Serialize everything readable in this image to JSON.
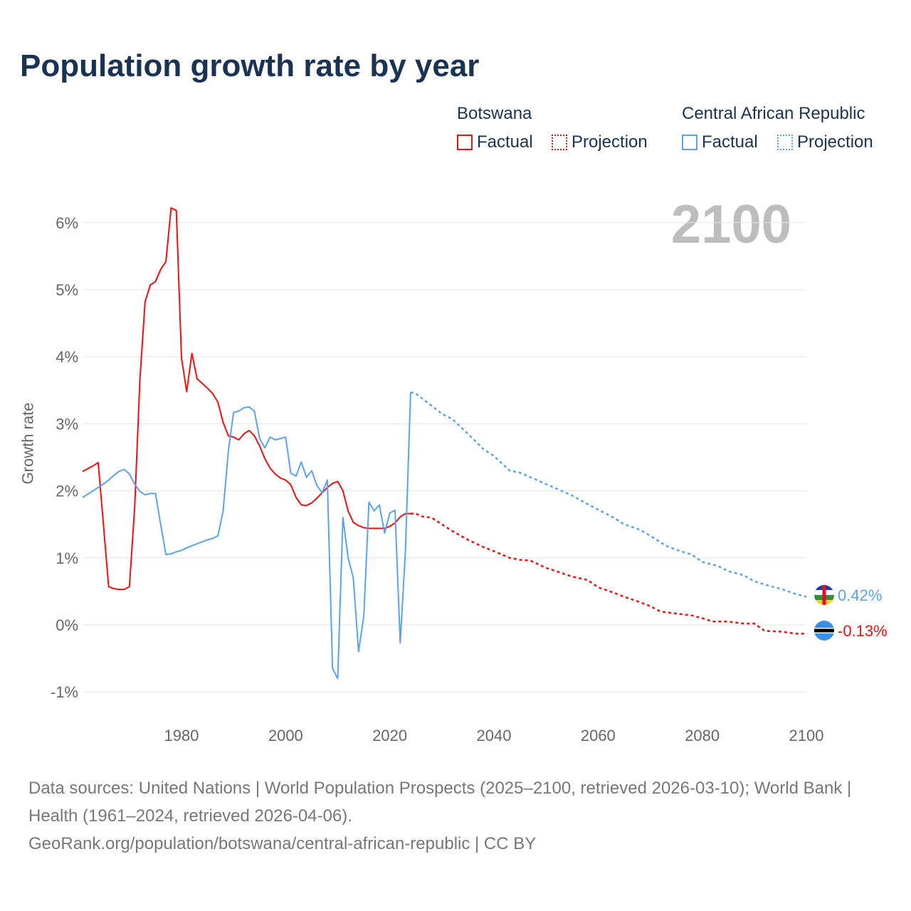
{
  "chart_data": {
    "type": "line",
    "title": "Population growth rate by year",
    "ylabel": "Growth rate",
    "xlabel": "",
    "xlim": [
      1961,
      2100
    ],
    "ylim": [
      -1.1,
      6.6
    ],
    "x_ticks": [
      1980,
      2000,
      2020,
      2040,
      2060,
      2080,
      2100
    ],
    "y_ticks": [
      -1,
      0,
      1,
      2,
      3,
      4,
      5,
      6
    ],
    "y_tick_labels": [
      "-1%",
      "0%",
      "1%",
      "2%",
      "3%",
      "4%",
      "5%",
      "6%"
    ],
    "x_tick_labels": [
      "1980",
      "2000",
      "2020",
      "2040",
      "2060",
      "2080",
      "2100"
    ],
    "grid": true,
    "current_year_label": "2100",
    "legend": {
      "placement": "top-right",
      "groups": [
        {
          "name": "Botswana",
          "factual": "Factual",
          "projection": "Projection"
        },
        {
          "name": "Central African Republic",
          "factual": "Factual",
          "projection": "Projection"
        }
      ]
    },
    "series": [
      {
        "name": "Botswana",
        "color": "#ee1111",
        "end_label": "-0.13%",
        "factual": {
          "x": [
            1961,
            1962,
            1963,
            1964,
            1965,
            1966,
            1967,
            1968,
            1969,
            1970,
            1971,
            1972,
            1973,
            1974,
            1975,
            1976,
            1977,
            1978,
            1979,
            1980,
            1981,
            1982,
            1983,
            1984,
            1985,
            1986,
            1987,
            1988,
            1989,
            1990,
            1991,
            1992,
            1993,
            1994,
            1995,
            1996,
            1997,
            1998,
            1999,
            2000,
            2001,
            2002,
            2003,
            2004,
            2005,
            2006,
            2007,
            2008,
            2009,
            2010,
            2011,
            2012,
            2013,
            2014,
            2015,
            2016,
            2017,
            2018,
            2019,
            2020,
            2021,
            2022,
            2023,
            2024
          ],
          "y": [
            2.29,
            2.33,
            2.37,
            2.42,
            1.5,
            0.57,
            0.54,
            0.53,
            0.53,
            0.57,
            1.75,
            3.65,
            4.82,
            5.07,
            5.12,
            5.3,
            5.42,
            6.22,
            6.18,
            3.98,
            3.48,
            4.05,
            3.67,
            3.6,
            3.53,
            3.45,
            3.32,
            3.02,
            2.82,
            2.8,
            2.76,
            2.85,
            2.9,
            2.82,
            2.67,
            2.48,
            2.34,
            2.25,
            2.19,
            2.16,
            2.09,
            1.9,
            1.79,
            1.78,
            1.82,
            1.89,
            1.97,
            2.05,
            2.11,
            2.14,
            2.0,
            1.7,
            1.53,
            1.48,
            1.45,
            1.44,
            1.44,
            1.44,
            1.44,
            1.47,
            1.52,
            1.61,
            1.66,
            1.66
          ]
        },
        "projection": {
          "x": [
            2024,
            2025,
            2026,
            2028,
            2030,
            2032,
            2035,
            2038,
            2040,
            2043,
            2045,
            2047,
            2050,
            2052,
            2055,
            2058,
            2060,
            2063,
            2065,
            2068,
            2070,
            2072,
            2075,
            2078,
            2080,
            2082,
            2085,
            2088,
            2090,
            2092,
            2095,
            2098,
            2100
          ],
          "y": [
            1.66,
            1.66,
            1.62,
            1.6,
            1.5,
            1.4,
            1.27,
            1.16,
            1.1,
            1.0,
            0.97,
            0.96,
            0.85,
            0.8,
            0.72,
            0.67,
            0.56,
            0.48,
            0.42,
            0.34,
            0.28,
            0.2,
            0.17,
            0.14,
            0.1,
            0.05,
            0.05,
            0.02,
            0.02,
            -0.09,
            -0.1,
            -0.13,
            -0.13
          ]
        }
      },
      {
        "name": "Central African Republic",
        "color": "#5ba3ee",
        "end_label": "0.42%",
        "factual": {
          "x": [
            1961,
            1962,
            1963,
            1964,
            1965,
            1966,
            1967,
            1968,
            1969,
            1970,
            1971,
            1972,
            1973,
            1974,
            1975,
            1976,
            1977,
            1978,
            1979,
            1980,
            1981,
            1982,
            1983,
            1984,
            1985,
            1986,
            1987,
            1988,
            1989,
            1990,
            1991,
            1992,
            1993,
            1994,
            1995,
            1996,
            1997,
            1998,
            1999,
            2000,
            2001,
            2002,
            2003,
            2004,
            2005,
            2006,
            2007,
            2008,
            2009,
            2010,
            2011,
            2012,
            2013,
            2014,
            2015,
            2016,
            2017,
            2018,
            2019,
            2020,
            2021,
            2022,
            2023,
            2024
          ],
          "y": [
            1.9,
            1.95,
            2.0,
            2.05,
            2.1,
            2.16,
            2.23,
            2.29,
            2.32,
            2.25,
            2.1,
            1.99,
            1.94,
            1.96,
            1.96,
            1.5,
            1.05,
            1.06,
            1.09,
            1.11,
            1.15,
            1.18,
            1.21,
            1.24,
            1.27,
            1.29,
            1.33,
            1.7,
            2.6,
            3.17,
            3.19,
            3.24,
            3.25,
            3.19,
            2.78,
            2.64,
            2.8,
            2.76,
            2.78,
            2.8,
            2.26,
            2.22,
            2.43,
            2.2,
            2.3,
            2.08,
            1.97,
            2.16,
            -0.65,
            -0.8,
            1.6,
            1.0,
            0.7,
            -0.4,
            0.13,
            1.83,
            1.7,
            1.79,
            1.37,
            1.67,
            1.71,
            -0.27,
            1.1,
            3.47
          ]
        },
        "projection": {
          "x": [
            2024,
            2025,
            2027,
            2030,
            2032,
            2035,
            2038,
            2040,
            2043,
            2045,
            2048,
            2050,
            2053,
            2055,
            2058,
            2060,
            2063,
            2065,
            2068,
            2070,
            2073,
            2075,
            2078,
            2080,
            2083,
            2085,
            2088,
            2090,
            2093,
            2095,
            2098,
            2100
          ],
          "y": [
            3.47,
            3.45,
            3.33,
            3.15,
            3.07,
            2.85,
            2.62,
            2.52,
            2.3,
            2.27,
            2.17,
            2.1,
            2.0,
            1.93,
            1.8,
            1.72,
            1.6,
            1.5,
            1.42,
            1.33,
            1.18,
            1.12,
            1.05,
            0.94,
            0.88,
            0.8,
            0.74,
            0.65,
            0.58,
            0.54,
            0.46,
            0.42
          ]
        }
      }
    ]
  },
  "footer": {
    "sources": "Data sources: United Nations | World Population Prospects (2025–2100, retrieved 2026-03-10); World Bank | Health (1961–2024, retrieved 2026-04-06).",
    "credit": "GeoRank.org/population/botswana/central-african-republic | CC BY"
  }
}
